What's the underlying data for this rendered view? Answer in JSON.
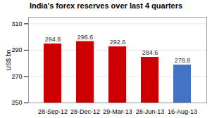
{
  "chart_data": {
    "type": "bar",
    "title": "India's forex reserves over last 4 quarters",
    "categories": [
      "28-Sep-12",
      "28-Dec-12",
      "29-Mar-13",
      "28-Jun-13",
      "16-Aug-13"
    ],
    "values": [
      294.8,
      296.6,
      292.6,
      284.6,
      278.8
    ],
    "colors": [
      "#cc0000",
      "#cc0000",
      "#cc0000",
      "#cc0000",
      "#4472c4"
    ],
    "ylabel": "US$ bn",
    "ylim": [
      250,
      315
    ],
    "yticks": [
      250,
      270,
      290,
      310
    ],
    "grid": true,
    "data_labels": true
  }
}
